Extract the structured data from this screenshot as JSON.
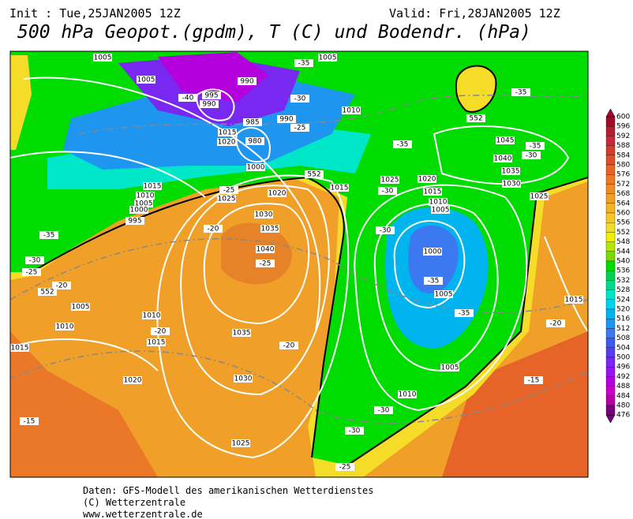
{
  "header": {
    "init": "Init : Tue,25JAN2005 12Z",
    "valid": "Valid: Fri,28JAN2005 12Z",
    "title": "500 hPa Geopot.(gpdm), T (C) und Bodendr. (hPa)"
  },
  "colorbar": {
    "labels": [
      "600",
      "596",
      "592",
      "588",
      "584",
      "580",
      "576",
      "572",
      "568",
      "564",
      "560",
      "556",
      "552",
      "548",
      "544",
      "540",
      "536",
      "532",
      "528",
      "524",
      "520",
      "516",
      "512",
      "508",
      "504",
      "500",
      "496",
      "492",
      "488",
      "484",
      "480",
      "476"
    ],
    "colors": [
      "#a00a28",
      "#b41e32",
      "#c8283c",
      "#d23c28",
      "#dc5028",
      "#e66428",
      "#eb7828",
      "#f08c28",
      "#f0a028",
      "#f5b428",
      "#f5c828",
      "#f5dc28",
      "#f0f000",
      "#b4e600",
      "#78dc00",
      "#00dc00",
      "#00d250",
      "#00dc8c",
      "#00e6c8",
      "#00d2f0",
      "#00b4f0",
      "#1e96f0",
      "#3c78f0",
      "#3c5af0",
      "#5a3cf0",
      "#7828f0",
      "#9614f0",
      "#b400dc",
      "#c800c8",
      "#b400a0",
      "#780078"
    ]
  },
  "map_labels": [
    "1005",
    "1005",
    "990",
    "995",
    "990",
    "-40",
    "-35",
    "1005",
    "-30",
    "985",
    "990",
    "-25",
    "1015",
    "1020",
    "980",
    "1000",
    "1010",
    "-35",
    "552",
    "-35",
    "1045",
    "-35",
    "1040",
    "-30",
    "1035",
    "1030",
    "1025",
    "1025",
    "1020",
    "-30",
    "1015",
    "1010",
    "1005",
    "552",
    "1015",
    "1020",
    "1025",
    "-25",
    "1015",
    "1010",
    "1005",
    "1000",
    "995",
    "-35",
    "-30",
    "-25",
    "-20",
    "552",
    "1030",
    "1035",
    "-20",
    "1040",
    "-25",
    "-30",
    "1000",
    "-35",
    "1005",
    "-35",
    "1005",
    "1010",
    "1010",
    "-20",
    "1015",
    "1015",
    "1035",
    "-20",
    "1005",
    "-20",
    "1015",
    "1020",
    "1030",
    "1010",
    "-30",
    "-15",
    "-15",
    "-30",
    "1025",
    "-25"
  ],
  "footer": {
    "source": "Daten: GFS-Modell des amerikanischen Wetterdienstes",
    "copyright": "(C) Wetterzentrale",
    "url": "www.wetterzentrale.de"
  }
}
